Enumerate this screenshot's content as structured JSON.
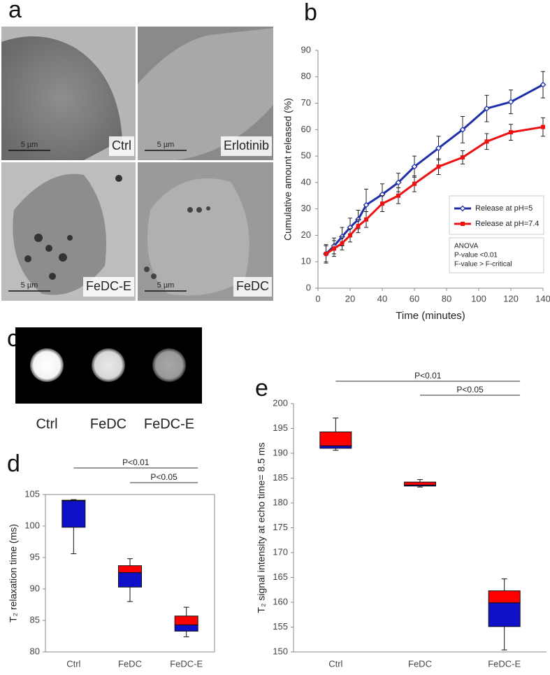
{
  "panel_a": {
    "label": "a",
    "images": [
      {
        "label": "Ctrl",
        "scale_bar": "5 µm"
      },
      {
        "label": "Erlotinib",
        "scale_bar": "5 µm"
      },
      {
        "label": "FeDC-E",
        "scale_bar": "5 µm"
      },
      {
        "label": "FeDC",
        "scale_bar": "5 µm"
      }
    ]
  },
  "panel_c": {
    "label": "c",
    "labels": [
      "Ctrl",
      "FeDC",
      "FeDC-E"
    ]
  },
  "chart_data": [
    {
      "type": "line",
      "label": "b",
      "y_label": "Cumulative amount released (%)",
      "x_label": "Time (minutes)",
      "x": [
        5,
        10,
        15,
        20,
        25,
        30,
        40,
        50,
        60,
        75,
        90,
        105,
        120,
        140
      ],
      "series": [
        {
          "name": "Release at pH=5",
          "color": "#1f2fa8",
          "marker": "diamond",
          "values": [
            13,
            16,
            19.5,
            23,
            26,
            31.5,
            35.5,
            40,
            46,
            53,
            60,
            68,
            70.5,
            77
          ],
          "errors": [
            3,
            3,
            3.5,
            3.5,
            3.5,
            6,
            4,
            3.5,
            4,
            4.5,
            5,
            5,
            4.5,
            5
          ]
        },
        {
          "name": "Release at pH=7.4",
          "color": "#ee1111",
          "marker": "square",
          "values": [
            13,
            15,
            17,
            20,
            23.5,
            26,
            32,
            35,
            39.5,
            46,
            49.5,
            55.5,
            59,
            61
          ],
          "errors": [
            3.5,
            3,
            2.5,
            2.5,
            2.5,
            3,
            3,
            3,
            3,
            3,
            2.5,
            3,
            3,
            3.5
          ]
        }
      ],
      "xlim": [
        0,
        140
      ],
      "xticks": [
        0,
        20,
        40,
        60,
        80,
        100,
        120,
        140
      ],
      "ylim": [
        0,
        90
      ],
      "yticks": [
        0,
        10,
        20,
        30,
        40,
        50,
        60,
        70,
        80,
        90
      ],
      "annotation": [
        "ANOVA",
        "P-value <0.01",
        "F-value > F-critical"
      ]
    },
    {
      "type": "box",
      "label": "d",
      "y_label": "T₂ relaxation time (ms)",
      "categories": [
        "Ctrl",
        "FeDC",
        "FeDC-E"
      ],
      "boxes": [
        {
          "min": 95.6,
          "q1": 99.8,
          "median": 104,
          "q3": 104.1,
          "max": 104.2
        },
        {
          "min": 88,
          "q1": 90.3,
          "median": 92.6,
          "q3": 93.7,
          "max": 94.8
        },
        {
          "min": 82.4,
          "q1": 83.3,
          "median": 84.3,
          "q3": 85.7,
          "max": 87.1
        }
      ],
      "lower_color": "#1010c8",
      "upper_color": "#ff0000",
      "ylim": [
        80,
        105
      ],
      "yticks": [
        80,
        85,
        90,
        95,
        100,
        105
      ],
      "significance": [
        "P<0.01",
        "P<0.05"
      ]
    },
    {
      "type": "box",
      "label": "e",
      "y_label": "T₂ signal intensity at echo time= 8.5 ms",
      "categories": [
        "Ctrl",
        "FeDC",
        "FeDC-E"
      ],
      "boxes": [
        {
          "min": 190.6,
          "q1": 191,
          "median": 191.5,
          "q3": 194.3,
          "max": 197.1
        },
        {
          "min": 183.2,
          "q1": 183.4,
          "median": 183.6,
          "q3": 184.2,
          "max": 184.7
        },
        {
          "min": 150.4,
          "q1": 155.1,
          "median": 159.9,
          "q3": 162.3,
          "max": 164.7
        }
      ],
      "lower_color": "#1010c8",
      "upper_color": "#ff0000",
      "ylim": [
        150,
        200
      ],
      "yticks": [
        150,
        155,
        160,
        165,
        170,
        175,
        180,
        185,
        190,
        195,
        200
      ],
      "significance": [
        "P<0.01",
        "P<0.05"
      ]
    }
  ]
}
